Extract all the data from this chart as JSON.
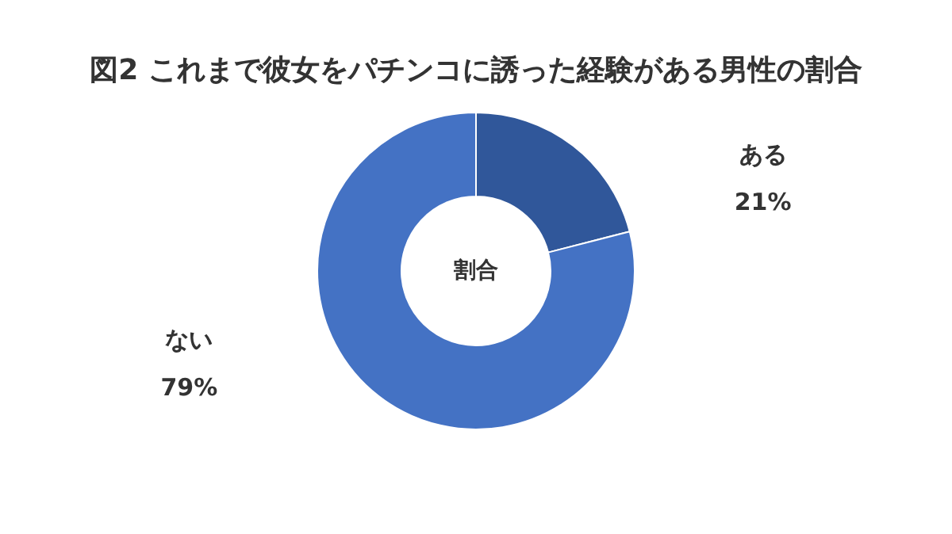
{
  "chart_data": {
    "type": "donut",
    "title": "図2 これまで彼女をパチンコに誘った経験がある男性の割合",
    "categories": [
      "ある",
      "ない"
    ],
    "values": [
      21,
      79
    ],
    "value_labels": [
      "21%",
      "79%"
    ],
    "colors": [
      "#30579a",
      "#4472c4"
    ],
    "annotations": [
      "割合"
    ]
  }
}
